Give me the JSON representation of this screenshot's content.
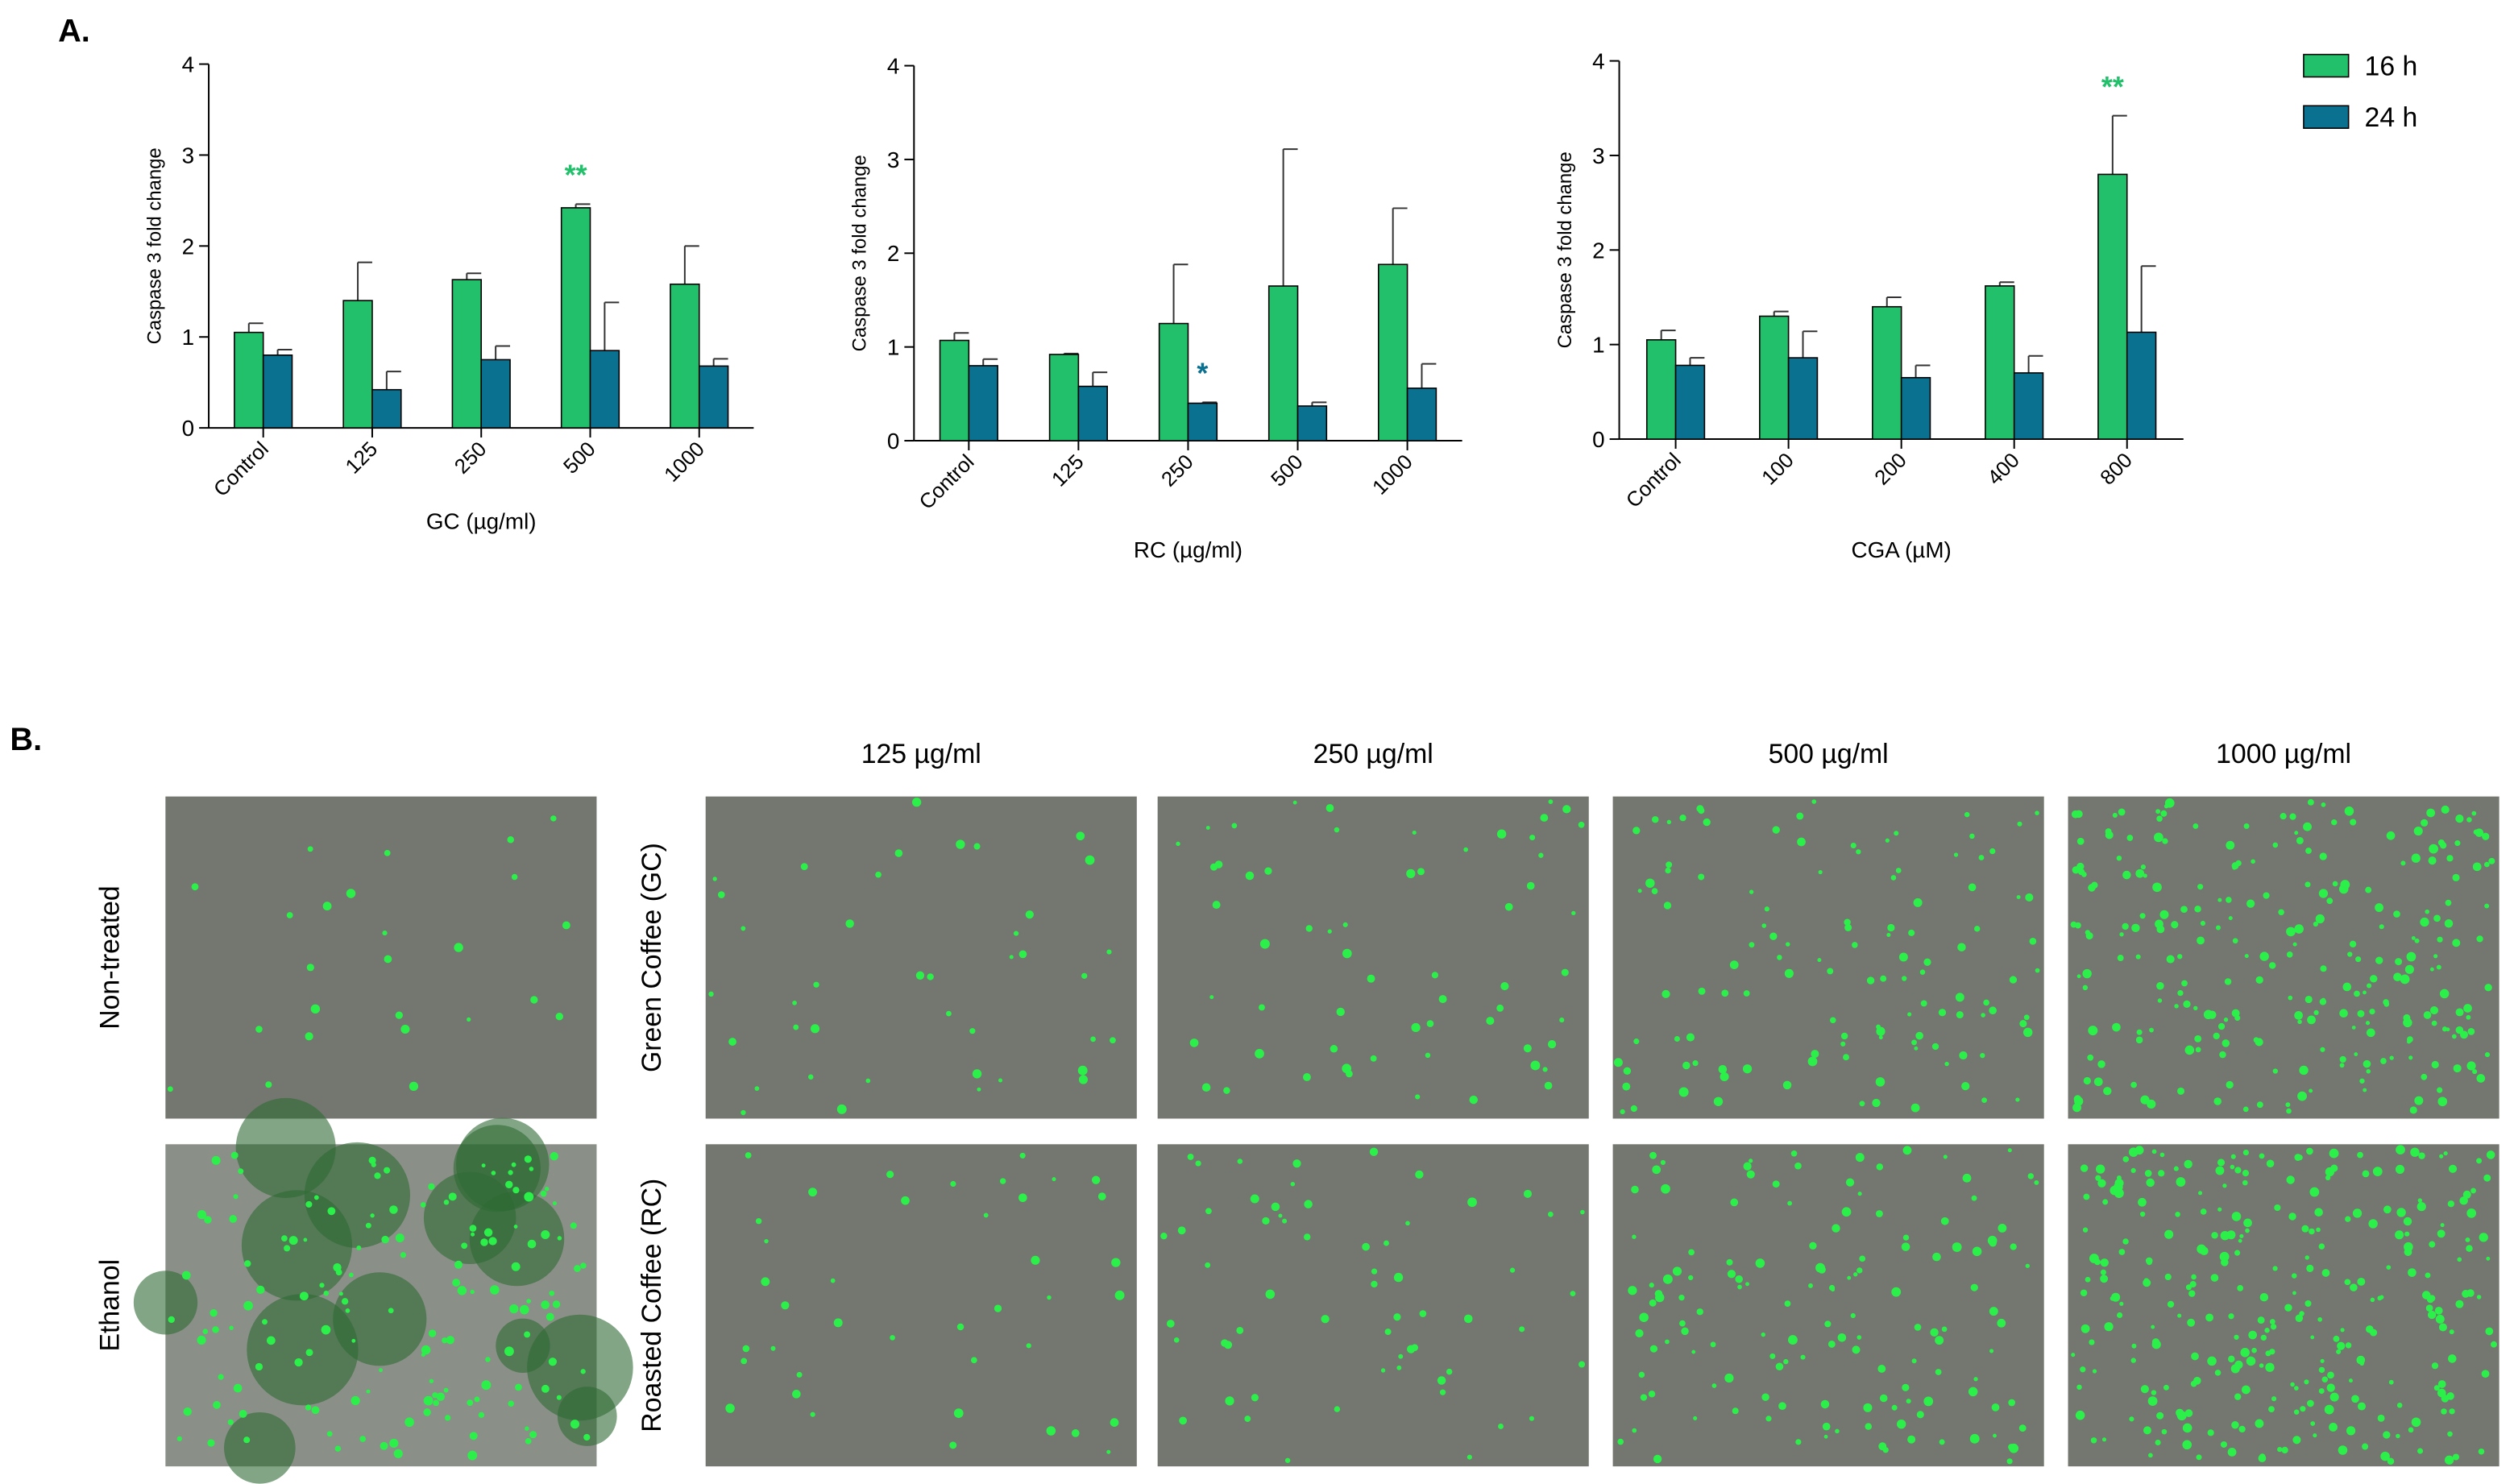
{
  "chart_data": [
    {
      "type": "bar",
      "y_label": "Caspase 3 fold change",
      "x_label": "GC  (µg/ml)",
      "categories": [
        "Control",
        "125",
        "250",
        "500",
        "1000"
      ],
      "series": [
        {
          "color": "#22c06b",
          "values": [
            1.05,
            1.4,
            1.63,
            2.42,
            1.58
          ],
          "errors": [
            0.1,
            0.42,
            0.07,
            0.04,
            0.42
          ]
        },
        {
          "color": "#0b7190",
          "values": [
            0.8,
            0.42,
            0.75,
            0.85,
            0.68
          ],
          "errors": [
            0.06,
            0.2,
            0.15,
            0.53,
            0.08
          ]
        }
      ],
      "ylim": [
        0,
        4
      ],
      "yticks": [
        0,
        1,
        2,
        3,
        4
      ],
      "annotations": [
        {
          "text": "**",
          "category": "500",
          "color": "#22c06b"
        }
      ]
    },
    {
      "type": "bar",
      "y_label": "Caspase 3 fold change",
      "x_label": "RC (µg/ml)",
      "categories": [
        "Control",
        "125",
        "250",
        "500",
        "1000"
      ],
      "series": [
        {
          "color": "#22c06b",
          "values": [
            1.07,
            0.92,
            1.25,
            1.65,
            1.88
          ],
          "errors": [
            0.08,
            0.01,
            0.63,
            1.46,
            0.6
          ]
        },
        {
          "color": "#0b7190",
          "values": [
            0.8,
            0.58,
            0.4,
            0.37,
            0.56
          ],
          "errors": [
            0.07,
            0.15,
            0.01,
            0.04,
            0.26
          ]
        }
      ],
      "ylim": [
        0,
        4
      ],
      "yticks": [
        0,
        1,
        2,
        3,
        4
      ],
      "annotations": [
        {
          "text": "*",
          "category": "250",
          "color": "#0b7190"
        }
      ]
    },
    {
      "type": "bar",
      "y_label": "Caspase 3 fold change",
      "x_label": "CGA (µM)",
      "categories": [
        "Control",
        "100",
        "200",
        "400",
        "800"
      ],
      "series": [
        {
          "name": "16 h",
          "color": "#22c06b",
          "values": [
            1.05,
            1.3,
            1.4,
            1.62,
            2.8
          ],
          "errors": [
            0.1,
            0.05,
            0.1,
            0.04,
            0.62
          ]
        },
        {
          "name": "24 h",
          "color": "#0b7190",
          "values": [
            0.78,
            0.86,
            0.65,
            0.7,
            1.13
          ],
          "errors": [
            0.08,
            0.28,
            0.13,
            0.18,
            0.7
          ]
        }
      ],
      "ylim": [
        0,
        4
      ],
      "yticks": [
        0,
        1,
        2,
        3,
        4
      ],
      "annotations": [
        {
          "text": "**",
          "category": "800",
          "color": "#22c06b"
        }
      ]
    }
  ],
  "panel_labels": [
    "A.",
    "B."
  ],
  "panel_b": {
    "column_headers": [
      "125 µg/ml",
      "250 µg/ml",
      "500 µg/ml",
      "1000 µg/ml"
    ],
    "control_row_labels": [
      "Non-treated",
      "Ethanol"
    ],
    "treatment_row_labels": [
      "Green Coffee (GC)",
      "Roasted Coffee (RC)"
    ]
  }
}
